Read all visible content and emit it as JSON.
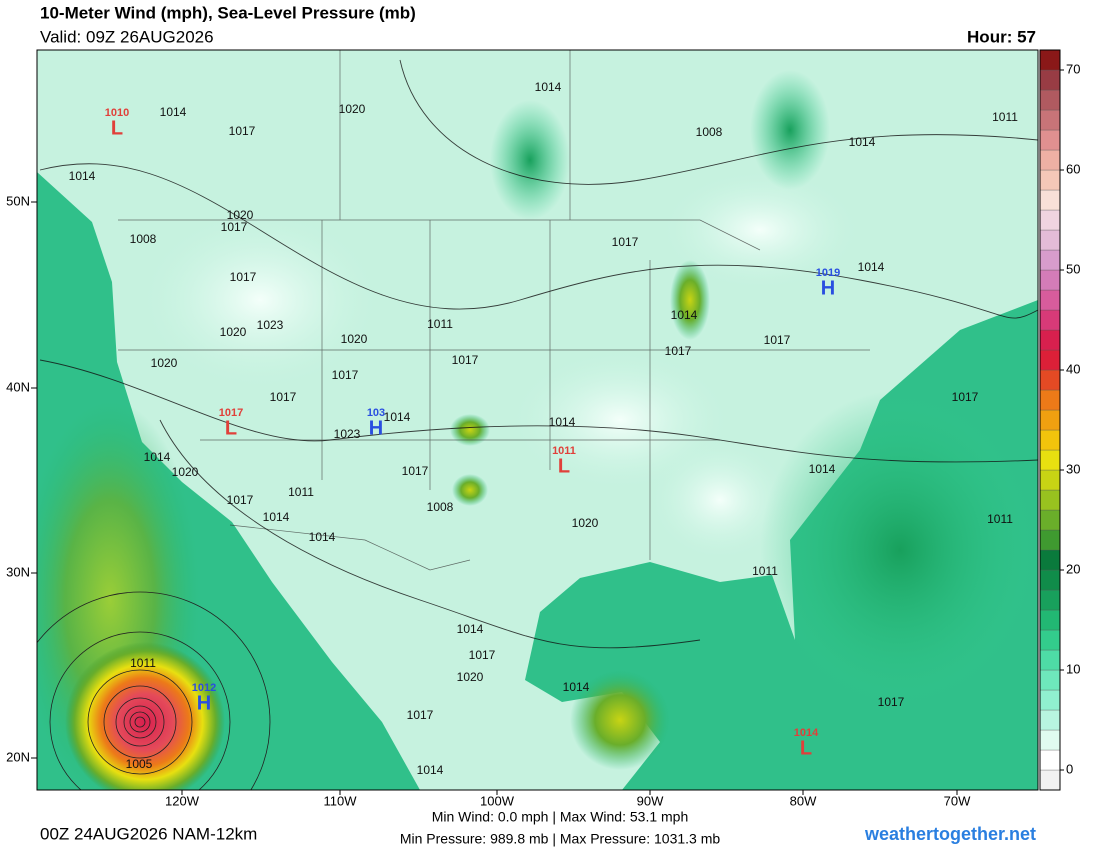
{
  "header": {
    "title": "10-Meter Wind (mph), Sea-Level Pressure (mb)",
    "valid": "Valid: 09Z 26AUG2026",
    "hour": "Hour: 57"
  },
  "map": {
    "lat_labels": [
      "50N",
      "40N",
      "30N",
      "20N"
    ],
    "lon_labels": [
      "120W",
      "110W",
      "100W",
      "90W",
      "80W",
      "70W"
    ],
    "isobar_labels": [
      "1014",
      "1017",
      "1020",
      "1014",
      "1008",
      "1014",
      "1011",
      "1014",
      "1020",
      "1017",
      "1008",
      "1017",
      "1014",
      "1017",
      "1020",
      "1023",
      "1020",
      "1011",
      "1014",
      "1017",
      "1017",
      "1020",
      "1017",
      "1017",
      "1017",
      "1017",
      "1023",
      "1014",
      "1014",
      "1014",
      "1020",
      "1017",
      "1014",
      "1011",
      "1017",
      "1008",
      "1014",
      "1020",
      "1011",
      "1014",
      "1011",
      "1014",
      "1017",
      "1020",
      "1011",
      "1014",
      "1017",
      "1017",
      "1005",
      "1014"
    ],
    "centers": [
      {
        "type": "L",
        "pressure": "1010"
      },
      {
        "type": "H",
        "pressure": "1012"
      },
      {
        "type": "L",
        "pressure": "1017"
      },
      {
        "type": "H",
        "pressure": "103"
      },
      {
        "type": "L",
        "pressure": "1011"
      },
      {
        "type": "H",
        "pressure": "1019"
      },
      {
        "type": "L",
        "pressure": "1014"
      }
    ]
  },
  "colorbar": {
    "lim": [
      -2,
      72
    ],
    "ticks": [
      0,
      10,
      20,
      30,
      40,
      50,
      60,
      70
    ],
    "colors": [
      "#f2f2f2",
      "#ffffff",
      "#e0fbf0",
      "#b8f5e0",
      "#90f0d0",
      "#6ee8bc",
      "#4edca6",
      "#33cc8c",
      "#22b873",
      "#18a05c",
      "#108c4a",
      "#0a7a3c",
      "#3f9a30",
      "#6aae2a",
      "#98c21f",
      "#c8d414",
      "#e8e010",
      "#f2c40c",
      "#f0a010",
      "#ec7a18",
      "#e44a24",
      "#dc2038",
      "#d8204e",
      "#d83a78",
      "#d85c9c",
      "#d47cb8",
      "#d89ccc",
      "#e4bcd8",
      "#f0d4e0",
      "#f8e0d8",
      "#f4c8b8",
      "#eeb0a4",
      "#e09090",
      "#c87478",
      "#b05a60",
      "#983c44",
      "#8a1818"
    ]
  },
  "footer": {
    "run": "00Z 24AUG2026 NAM-12km",
    "wind": "Min Wind:  0.0 mph | Max Wind:  53.1 mph",
    "pressure": "Min Pressure: 989.8 mb | Max Pressure: 1031.3 mb",
    "site": "weathertogether.net"
  }
}
